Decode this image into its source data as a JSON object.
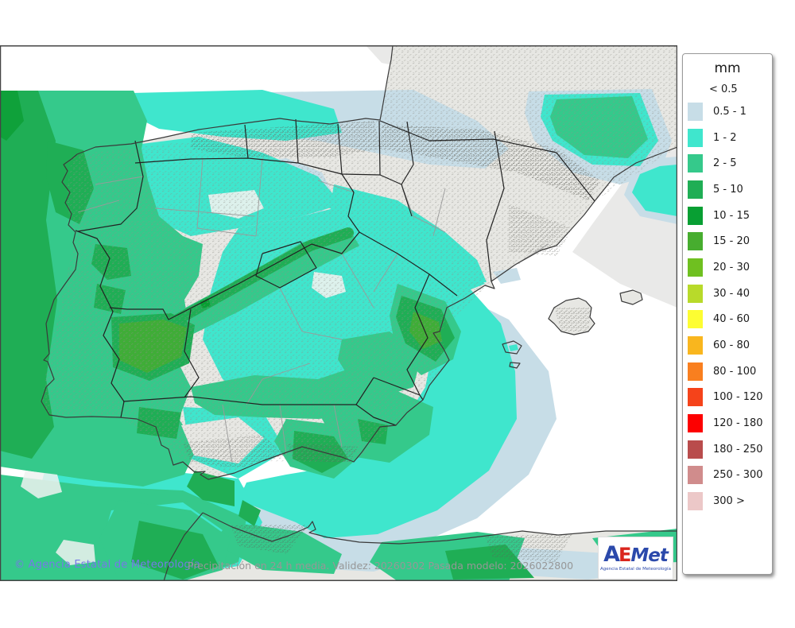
{
  "legend": {
    "unit": "mm",
    "no_color_label": "< 0.5",
    "items": [
      {
        "label": "0.5 - 1",
        "color": "#c7dde7"
      },
      {
        "label": "1 - 2",
        "color": "#3fe6cd"
      },
      {
        "label": "2 - 5",
        "color": "#35c98b"
      },
      {
        "label": "5 - 10",
        "color": "#1fae55"
      },
      {
        "label": "10 - 15",
        "color": "#089f33"
      },
      {
        "label": "15 - 20",
        "color": "#47ad2f"
      },
      {
        "label": "20 - 30",
        "color": "#6fc020"
      },
      {
        "label": "30 - 40",
        "color": "#b8da2a"
      },
      {
        "label": "40 - 60",
        "color": "#fdfd32"
      },
      {
        "label": "60 - 80",
        "color": "#f9b61e"
      },
      {
        "label": "80 - 100",
        "color": "#f97f1f"
      },
      {
        "label": "100 - 120",
        "color": "#f5431a"
      },
      {
        "label": "120 - 180",
        "color": "#fd0000"
      },
      {
        "label": "180 - 250",
        "color": "#b94c4c"
      },
      {
        "label": "250 - 300",
        "color": "#d08c8c"
      },
      {
        "label": "300 >",
        "color": "#ecc8c8"
      }
    ]
  },
  "footer": {
    "copyright": "© Agencia Estatal de Meteorología",
    "caption": "Precipitación en 24 h media. Validez: 20260302 Pasada modelo: 2026022800"
  },
  "logo": {
    "a": "A",
    "e": "E",
    "met": "Met",
    "caption": "Agencia Estatal de Meteorología"
  },
  "colors": {
    "sea_white": "#ffffff",
    "sea_gray": "#e9e9e8",
    "terrain": "#e7e7e3",
    "terrain_hatch": "#8f8f88",
    "white_patch": "#eef2f0",
    "coast": "#3a3a3a",
    "region_border": "#222222",
    "province_border": "#9a9a9a",
    "frame": "#444444",
    "dark_corner": "#0fa13a"
  }
}
